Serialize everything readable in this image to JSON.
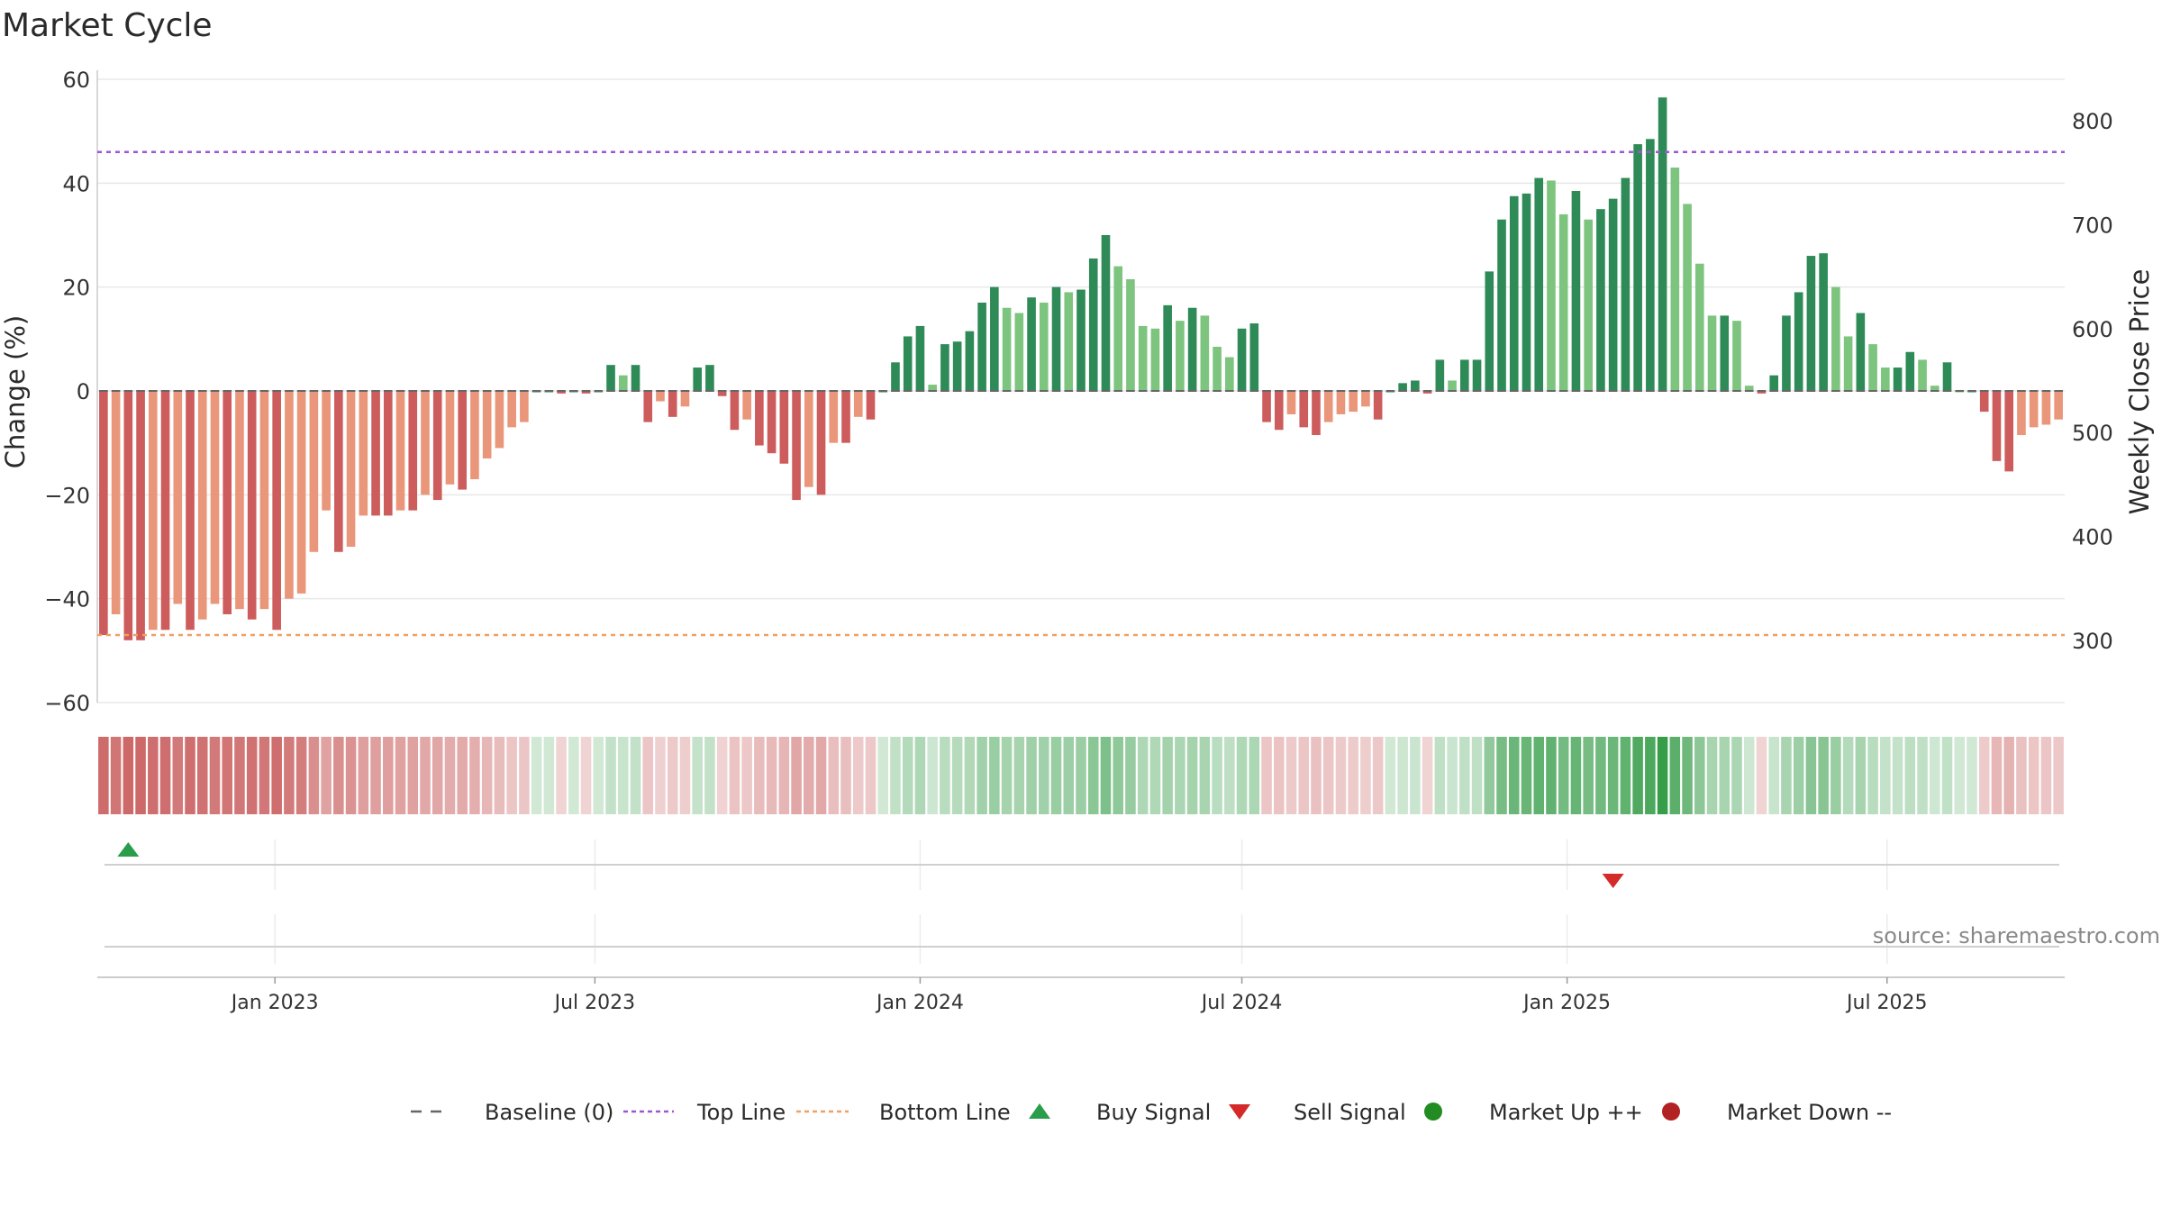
{
  "chart_data": {
    "type": "bar",
    "title": "Market Cycle",
    "ylabel": "Change (%)",
    "y2label": "Weekly Close Price",
    "ylim": [
      -60,
      60
    ],
    "y2lim": [
      240,
      840
    ],
    "yticks": [
      "60",
      "40",
      "20",
      "0",
      "−20",
      "−40",
      "−60"
    ],
    "y2ticks": [
      "800",
      "700",
      "600",
      "500",
      "400",
      "300"
    ],
    "grid": true,
    "x_start": "2022-09-26",
    "x_interval_days": 7,
    "xticks": [
      {
        "date": "2023-01-01",
        "label": "Jan 2023"
      },
      {
        "date": "2023-07-01",
        "label": "Jul 2023"
      },
      {
        "date": "2024-01-01",
        "label": "Jan 2024"
      },
      {
        "date": "2024-07-01",
        "label": "Jul 2024"
      },
      {
        "date": "2025-01-01",
        "label": "Jan 2025"
      },
      {
        "date": "2025-07-01",
        "label": "Jul 2025"
      }
    ],
    "values": [
      -47,
      -43,
      -48,
      -48,
      -46,
      -46,
      -41,
      -46,
      -44,
      -41,
      -43,
      -42,
      -44,
      -42,
      -46,
      -40,
      -39,
      -31,
      -23,
      -31,
      -30,
      -24,
      -24,
      -24,
      -23,
      -23,
      -20,
      -21,
      -18,
      -19,
      -17,
      -13,
      -11,
      -7,
      -6,
      0,
      0,
      -0.5,
      0,
      -0.5,
      0,
      5,
      3,
      5,
      -6,
      -2,
      -5,
      -3,
      4.5,
      5,
      -1,
      -7.5,
      -5.5,
      -10.5,
      -12,
      -14,
      -21,
      -18.5,
      -20,
      -10,
      -10,
      -5,
      -5.5,
      0,
      5.5,
      10.5,
      12.5,
      1.2,
      9,
      9.5,
      11.5,
      17,
      20,
      16,
      15,
      18,
      17,
      20,
      19,
      19.5,
      25.5,
      30,
      24,
      21.5,
      12.5,
      12,
      16.5,
      13.5,
      16,
      14.5,
      8.5,
      6.5,
      12,
      13,
      -6,
      -7.5,
      -4.5,
      -7,
      -8.5,
      -6,
      -4.5,
      -4,
      -3,
      -5.5,
      0,
      1.5,
      2,
      -0.5,
      6,
      2,
      6,
      6,
      23,
      33,
      37.5,
      38,
      41,
      40.5,
      34,
      38.5,
      33,
      35,
      37,
      41,
      47.5,
      48.5,
      56.5,
      43,
      36,
      24.5,
      14.5,
      14.5,
      13.5,
      1,
      -0.5,
      3,
      14.5,
      19,
      26,
      26.5,
      20,
      10.5,
      15,
      9,
      4.5,
      4.5,
      7.5,
      6,
      1,
      5.5,
      0,
      0,
      -4,
      -13.5,
      -15.5,
      -8.5,
      -7,
      -6.5,
      -5.5
    ],
    "price_scale_note": "",
    "top_line": 46,
    "bottom_line": -47,
    "signals": [
      {
        "type": "buy",
        "date": "2022-10-10"
      },
      {
        "type": "sell",
        "date": "2025-01-27"
      }
    ],
    "colors": {
      "strong_up": "#2e8b57",
      "weak_up": "#7dc47f",
      "strong_down": "#cd5c5c",
      "weak_down": "#e9967a",
      "top_line": "#9b59d0",
      "bottom_line": "#f0a060",
      "buy": "#2a9d4a",
      "sell": "#d42a2a",
      "market_up": "#228b22",
      "market_down": "#b22222",
      "baseline": "#666666"
    },
    "legend": [
      {
        "key": "baseline",
        "label": "Baseline (0)"
      },
      {
        "key": "top",
        "label": "Top Line"
      },
      {
        "key": "bottom",
        "label": "Bottom Line"
      },
      {
        "key": "buy",
        "label": "Buy Signal"
      },
      {
        "key": "sell",
        "label": "Sell Signal"
      },
      {
        "key": "up",
        "label": "Market Up ++"
      },
      {
        "key": "down",
        "label": "Market Down --"
      }
    ],
    "source": "source: sharemaestro.com"
  }
}
